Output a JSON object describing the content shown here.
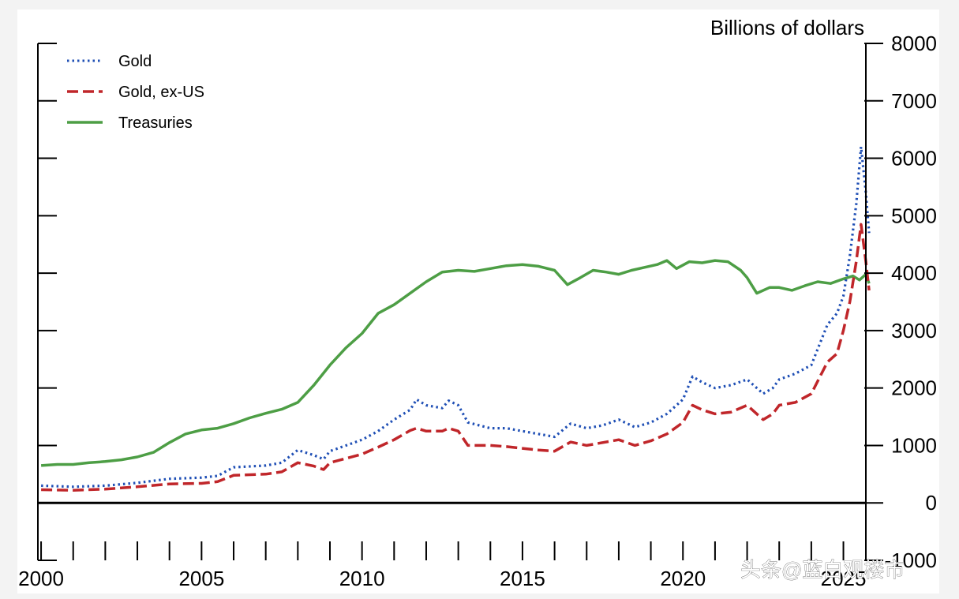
{
  "chart_data": {
    "type": "line",
    "title": "",
    "unit_label": "Billions of dollars",
    "xlim": [
      1999.9,
      2025.7
    ],
    "ylim": [
      -1000,
      8000
    ],
    "y_axis_side": "right",
    "x_ticks": [
      2000,
      2005,
      2010,
      2015,
      2020,
      2025
    ],
    "x_tick_labels": [
      "2000",
      "2005",
      "2010",
      "2015",
      "2020",
      "2025"
    ],
    "y_ticks": [
      -1000,
      0,
      1000,
      2000,
      3000,
      4000,
      5000,
      6000,
      7000,
      8000
    ],
    "y_tick_labels": [
      "-1000",
      "0",
      "1000",
      "2000",
      "3000",
      "4000",
      "5000",
      "6000",
      "7000",
      "8000"
    ],
    "zero_line": true,
    "grid": false,
    "legend_position": "top-left",
    "series": [
      {
        "name": "Gold",
        "style": "dotted",
        "color": "#1f4fb5",
        "points": [
          [
            2000.0,
            300
          ],
          [
            2001.0,
            280
          ],
          [
            2002.0,
            300
          ],
          [
            2003.0,
            350
          ],
          [
            2004.0,
            420
          ],
          [
            2005.0,
            440
          ],
          [
            2005.5,
            470
          ],
          [
            2006.0,
            620
          ],
          [
            2007.0,
            650
          ],
          [
            2007.5,
            700
          ],
          [
            2008.0,
            920
          ],
          [
            2008.5,
            830
          ],
          [
            2008.8,
            760
          ],
          [
            2009.0,
            900
          ],
          [
            2010.0,
            1100
          ],
          [
            2010.5,
            1250
          ],
          [
            2011.0,
            1450
          ],
          [
            2011.5,
            1620
          ],
          [
            2011.7,
            1800
          ],
          [
            2012.0,
            1700
          ],
          [
            2012.5,
            1650
          ],
          [
            2012.7,
            1780
          ],
          [
            2013.0,
            1700
          ],
          [
            2013.3,
            1400
          ],
          [
            2014.0,
            1300
          ],
          [
            2014.5,
            1300
          ],
          [
            2015.0,
            1250
          ],
          [
            2015.5,
            1200
          ],
          [
            2016.0,
            1150
          ],
          [
            2016.5,
            1380
          ],
          [
            2017.0,
            1300
          ],
          [
            2017.5,
            1350
          ],
          [
            2018.0,
            1450
          ],
          [
            2018.5,
            1320
          ],
          [
            2019.0,
            1400
          ],
          [
            2019.5,
            1550
          ],
          [
            2020.0,
            1800
          ],
          [
            2020.3,
            2200
          ],
          [
            2020.6,
            2100
          ],
          [
            2021.0,
            2000
          ],
          [
            2021.5,
            2050
          ],
          [
            2022.0,
            2150
          ],
          [
            2022.5,
            1900
          ],
          [
            2022.8,
            2000
          ],
          [
            2023.0,
            2150
          ],
          [
            2023.5,
            2250
          ],
          [
            2024.0,
            2400
          ],
          [
            2024.5,
            3100
          ],
          [
            2024.8,
            3300
          ],
          [
            2025.0,
            3600
          ],
          [
            2025.2,
            4300
          ],
          [
            2025.4,
            5200
          ],
          [
            2025.55,
            6200
          ],
          [
            2025.7,
            5400
          ],
          [
            2025.8,
            4700
          ]
        ]
      },
      {
        "name": "Gold, ex-US",
        "style": "dashed",
        "color": "#c0262a",
        "points": [
          [
            2000.0,
            230
          ],
          [
            2001.0,
            220
          ],
          [
            2002.0,
            240
          ],
          [
            2003.0,
            280
          ],
          [
            2004.0,
            330
          ],
          [
            2005.0,
            340
          ],
          [
            2005.5,
            370
          ],
          [
            2006.0,
            480
          ],
          [
            2007.0,
            500
          ],
          [
            2007.5,
            540
          ],
          [
            2008.0,
            700
          ],
          [
            2008.5,
            640
          ],
          [
            2008.8,
            580
          ],
          [
            2009.0,
            700
          ],
          [
            2010.0,
            850
          ],
          [
            2010.5,
            970
          ],
          [
            2011.0,
            1100
          ],
          [
            2011.5,
            1260
          ],
          [
            2011.7,
            1300
          ],
          [
            2012.0,
            1250
          ],
          [
            2012.5,
            1250
          ],
          [
            2012.7,
            1300
          ],
          [
            2013.0,
            1250
          ],
          [
            2013.3,
            1000
          ],
          [
            2014.0,
            1000
          ],
          [
            2014.5,
            980
          ],
          [
            2015.0,
            950
          ],
          [
            2015.5,
            920
          ],
          [
            2016.0,
            900
          ],
          [
            2016.5,
            1060
          ],
          [
            2017.0,
            1000
          ],
          [
            2017.5,
            1050
          ],
          [
            2018.0,
            1100
          ],
          [
            2018.5,
            1000
          ],
          [
            2019.0,
            1080
          ],
          [
            2019.5,
            1200
          ],
          [
            2020.0,
            1400
          ],
          [
            2020.3,
            1700
          ],
          [
            2020.6,
            1620
          ],
          [
            2021.0,
            1550
          ],
          [
            2021.5,
            1580
          ],
          [
            2022.0,
            1700
          ],
          [
            2022.5,
            1450
          ],
          [
            2022.8,
            1550
          ],
          [
            2023.0,
            1700
          ],
          [
            2023.5,
            1750
          ],
          [
            2024.0,
            1900
          ],
          [
            2024.5,
            2450
          ],
          [
            2024.8,
            2600
          ],
          [
            2025.0,
            3000
          ],
          [
            2025.2,
            3500
          ],
          [
            2025.4,
            4200
          ],
          [
            2025.55,
            4850
          ],
          [
            2025.7,
            4200
          ],
          [
            2025.8,
            3700
          ]
        ]
      },
      {
        "name": "Treasuries",
        "style": "solid",
        "color": "#4d9e45",
        "points": [
          [
            2000.0,
            650
          ],
          [
            2000.5,
            670
          ],
          [
            2001.0,
            670
          ],
          [
            2001.5,
            700
          ],
          [
            2002.0,
            720
          ],
          [
            2002.5,
            750
          ],
          [
            2003.0,
            800
          ],
          [
            2003.5,
            880
          ],
          [
            2004.0,
            1050
          ],
          [
            2004.5,
            1200
          ],
          [
            2005.0,
            1270
          ],
          [
            2005.5,
            1300
          ],
          [
            2006.0,
            1380
          ],
          [
            2006.5,
            1480
          ],
          [
            2007.0,
            1560
          ],
          [
            2007.5,
            1630
          ],
          [
            2008.0,
            1750
          ],
          [
            2008.5,
            2050
          ],
          [
            2009.0,
            2400
          ],
          [
            2009.5,
            2700
          ],
          [
            2010.0,
            2950
          ],
          [
            2010.5,
            3300
          ],
          [
            2011.0,
            3450
          ],
          [
            2011.5,
            3650
          ],
          [
            2012.0,
            3850
          ],
          [
            2012.5,
            4020
          ],
          [
            2013.0,
            4050
          ],
          [
            2013.5,
            4030
          ],
          [
            2014.0,
            4080
          ],
          [
            2014.5,
            4130
          ],
          [
            2015.0,
            4150
          ],
          [
            2015.5,
            4120
          ],
          [
            2016.0,
            4050
          ],
          [
            2016.4,
            3800
          ],
          [
            2016.8,
            3920
          ],
          [
            2017.2,
            4050
          ],
          [
            2017.6,
            4020
          ],
          [
            2018.0,
            3980
          ],
          [
            2018.4,
            4050
          ],
          [
            2018.8,
            4100
          ],
          [
            2019.2,
            4150
          ],
          [
            2019.5,
            4220
          ],
          [
            2019.8,
            4080
          ],
          [
            2020.2,
            4200
          ],
          [
            2020.6,
            4180
          ],
          [
            2021.0,
            4220
          ],
          [
            2021.4,
            4200
          ],
          [
            2021.8,
            4050
          ],
          [
            2022.0,
            3920
          ],
          [
            2022.3,
            3650
          ],
          [
            2022.7,
            3750
          ],
          [
            2023.0,
            3750
          ],
          [
            2023.4,
            3700
          ],
          [
            2023.8,
            3780
          ],
          [
            2024.2,
            3850
          ],
          [
            2024.6,
            3820
          ],
          [
            2025.0,
            3900
          ],
          [
            2025.3,
            3950
          ],
          [
            2025.5,
            3880
          ],
          [
            2025.7,
            3980
          ],
          [
            2025.8,
            3820
          ]
        ]
      }
    ]
  },
  "watermark": "头条@蓝白观楼市"
}
